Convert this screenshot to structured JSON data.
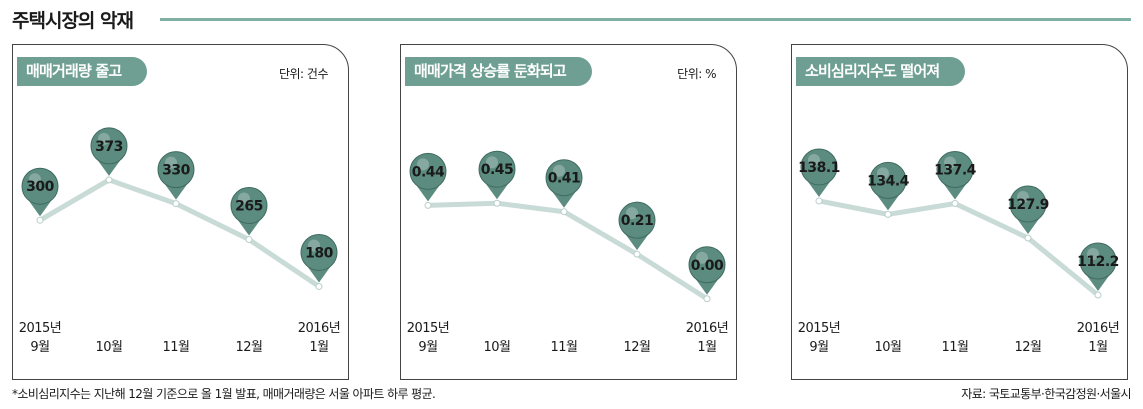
{
  "page": {
    "title": "주택시장의 악재",
    "footnote": "*소비심리지수는 지난해 12월 기준으로 올 1월 발표, 매매거래량은 서울 아파트 하루 평균.",
    "source": "자료: 국토교통부·한국감정원·서울시"
  },
  "colors": {
    "line": "#c8dbd6",
    "pin": "#5c8c80",
    "tab": "#6f9f93",
    "rule": "#7fb0a4"
  },
  "chart_data": [
    {
      "type": "line",
      "title": "매매거래량 줄고",
      "unit": "단위: 건수",
      "categories": [
        [
          "2015년",
          "9월"
        ],
        [
          "10월"
        ],
        [
          "11월"
        ],
        [
          "12월"
        ],
        [
          "2016년",
          "1월"
        ]
      ],
      "values": [
        300,
        373,
        330,
        265,
        180
      ],
      "labels": [
        "300",
        "373",
        "330",
        "265",
        "180"
      ],
      "ylim": [
        150,
        400
      ]
    },
    {
      "type": "line",
      "title": "매매가격 상승률 둔화되고",
      "unit": "단위: %",
      "categories": [
        [
          "2015년",
          "9월"
        ],
        [
          "10월"
        ],
        [
          "11월"
        ],
        [
          "12월"
        ],
        [
          "2016년",
          "1월"
        ]
      ],
      "values": [
        0.44,
        0.45,
        0.41,
        0.21,
        0.0
      ],
      "labels": [
        "0.44",
        "0.45",
        "0.41",
        "0.21",
        "0.00"
      ],
      "ylim": [
        -0.02,
        0.63
      ]
    },
    {
      "type": "line",
      "title": "소비심리지수도 떨어져",
      "unit": "",
      "categories": [
        [
          "2015년",
          "9월"
        ],
        [
          "10월"
        ],
        [
          "11월"
        ],
        [
          "12월"
        ],
        [
          "2016년",
          "1월"
        ]
      ],
      "values": [
        138.1,
        134.4,
        137.4,
        127.9,
        112.2
      ],
      "labels": [
        "138.1",
        "134.4",
        "137.4",
        "127.9",
        "112.2"
      ],
      "ylim": [
        110,
        148
      ]
    }
  ]
}
